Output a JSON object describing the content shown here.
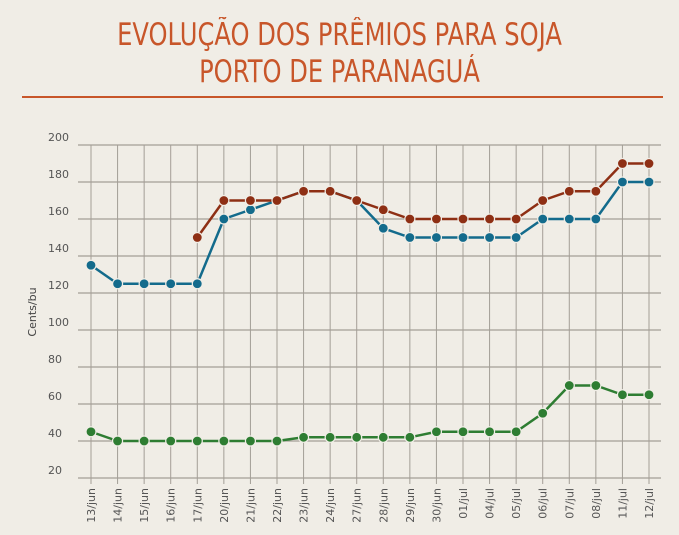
{
  "chart_data": {
    "type": "line",
    "title": [
      "EVOLUÇÃO DOS PRÊMIOS PARA SOJA",
      "PORTO DE PARANAGUÁ"
    ],
    "ylabel": "Cents/bu",
    "xlabel": "",
    "ylim": [
      20,
      200
    ],
    "yticks": [
      20,
      40,
      60,
      80,
      100,
      120,
      140,
      160,
      180,
      200
    ],
    "grid": true,
    "categories": [
      "13/jun",
      "14/jun",
      "15/jun",
      "16/jun",
      "17/jun",
      "20/jun",
      "21/jun",
      "22/jun",
      "23/jun",
      "24/jun",
      "27/jun",
      "28/jun",
      "29/jun",
      "30/jun",
      "01/jul",
      "04/jul",
      "05/jul",
      "06/jul",
      "07/jul",
      "08/jul",
      "11/jul",
      "12/jul"
    ],
    "series": [
      {
        "color": "#136b8c",
        "values": [
          135,
          125,
          125,
          125,
          125,
          160,
          165,
          170,
          175,
          175,
          170,
          155,
          150,
          150,
          150,
          150,
          150,
          160,
          160,
          160,
          180,
          180
        ]
      },
      {
        "color": "#8e2f14",
        "values": [
          null,
          null,
          null,
          null,
          150,
          170,
          170,
          170,
          175,
          175,
          170,
          165,
          160,
          160,
          160,
          160,
          160,
          170,
          175,
          175,
          190,
          190
        ]
      },
      {
        "color": "#2e7d32",
        "values": [
          45,
          40,
          40,
          40,
          40,
          40,
          40,
          40,
          42,
          42,
          42,
          42,
          42,
          45,
          45,
          45,
          45,
          55,
          70,
          70,
          65,
          65
        ]
      }
    ]
  },
  "colors": {
    "background": "#f0ede6",
    "title": "#c8562a",
    "grid": "#a39e96"
  }
}
